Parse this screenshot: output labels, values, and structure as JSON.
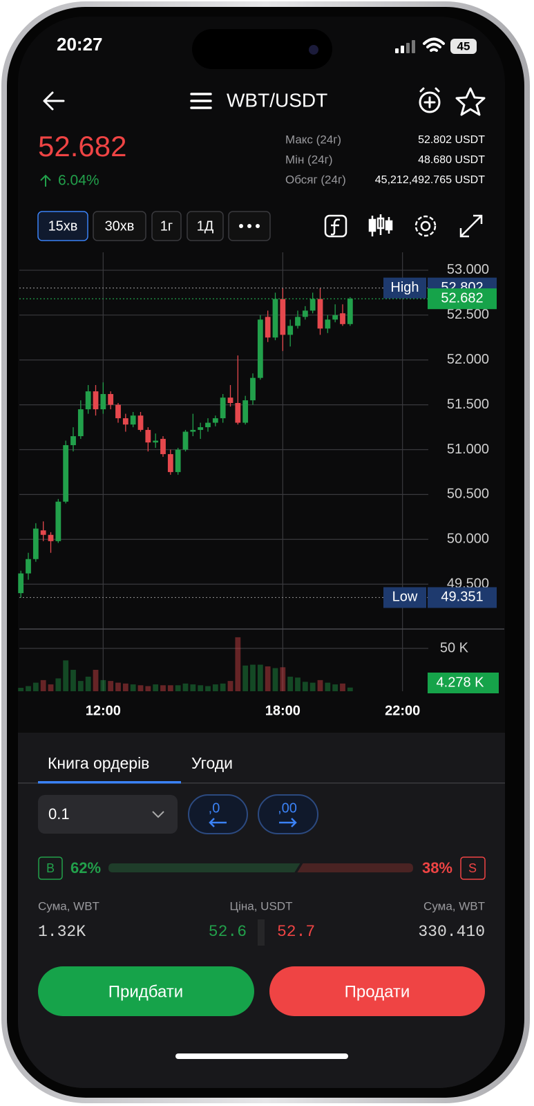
{
  "status": {
    "time": "20:27",
    "battery": "45"
  },
  "header": {
    "pair": "WBT/USDT"
  },
  "ticker": {
    "price": "52.682",
    "change": "6.04%",
    "stats": [
      {
        "label": "Макс (24г)",
        "value": "52.802 USDT"
      },
      {
        "label": "Мін (24г)",
        "value": "48.680 USDT"
      },
      {
        "label": "Обсяг (24г)",
        "value": "45,212,492.765 USDT"
      }
    ]
  },
  "intervals": [
    "15хв",
    "30хв",
    "1г",
    "1Д"
  ],
  "chart_data": {
    "type": "candlestick",
    "x": [
      9.25,
      9.5,
      9.75,
      10,
      10.25,
      10.5,
      10.75,
      11,
      11.25,
      11.5,
      11.75,
      12,
      12.25,
      12.5,
      12.75,
      13,
      13.25,
      13.5,
      13.75,
      14,
      14.25,
      14.5,
      14.75,
      15,
      15.25,
      15.5,
      15.75,
      16,
      16.25,
      16.5,
      16.75,
      17,
      17.25,
      17.5,
      17.75,
      18,
      18.25,
      18.5,
      18.75,
      19,
      19.25,
      19.5,
      19.75,
      20,
      20.25
    ],
    "open": [
      49.4,
      49.62,
      49.78,
      50.1,
      50.05,
      49.98,
      50.42,
      51.05,
      51.15,
      51.45,
      51.65,
      51.45,
      51.62,
      51.5,
      51.35,
      51.28,
      51.38,
      51.22,
      51.08,
      51.12,
      50.95,
      50.75,
      51.0,
      51.2,
      51.22,
      51.25,
      51.3,
      51.35,
      51.58,
      51.52,
      51.3,
      51.55,
      51.8,
      52.48,
      52.25,
      52.68,
      52.28,
      52.38,
      52.48,
      52.55,
      52.68,
      52.35,
      52.45,
      52.52,
      52.4
    ],
    "high": [
      49.65,
      49.85,
      50.18,
      50.2,
      50.08,
      50.45,
      51.1,
      51.25,
      51.55,
      51.72,
      51.72,
      51.75,
      51.65,
      51.52,
      51.4,
      51.42,
      51.42,
      51.25,
      51.18,
      51.15,
      51.0,
      51.02,
      51.22,
      51.4,
      51.3,
      51.35,
      51.38,
      51.62,
      51.72,
      52.05,
      51.6,
      51.85,
      52.5,
      52.55,
      52.75,
      52.8,
      52.45,
      52.55,
      52.6,
      52.75,
      52.8,
      52.5,
      52.62,
      52.62,
      52.7
    ],
    "low": [
      49.35,
      49.55,
      49.75,
      49.98,
      49.85,
      49.96,
      50.4,
      50.98,
      51.12,
      51.4,
      51.38,
      51.4,
      51.45,
      51.3,
      51.2,
      51.25,
      51.2,
      50.98,
      51.02,
      50.92,
      50.72,
      50.72,
      50.98,
      51.15,
      51.12,
      51.2,
      51.26,
      51.3,
      51.48,
      51.28,
      51.28,
      51.5,
      51.78,
      52.2,
      52.22,
      52.1,
      52.15,
      52.35,
      52.45,
      52.52,
      52.28,
      52.3,
      52.42,
      52.38,
      52.38
    ],
    "close": [
      49.62,
      49.78,
      50.12,
      50.05,
      49.98,
      50.42,
      51.05,
      51.15,
      51.45,
      51.65,
      51.45,
      51.62,
      51.5,
      51.35,
      51.28,
      51.38,
      51.22,
      51.08,
      51.1,
      50.95,
      50.75,
      51.0,
      51.2,
      51.22,
      51.25,
      51.3,
      51.35,
      51.58,
      51.52,
      51.3,
      51.55,
      51.8,
      52.45,
      52.25,
      52.68,
      52.28,
      52.38,
      52.48,
      52.55,
      52.68,
      52.35,
      52.45,
      52.5,
      52.4,
      52.682
    ],
    "volume": [
      4,
      6,
      10,
      13,
      8,
      15,
      36,
      25,
      12,
      17,
      25,
      13,
      12,
      10,
      9,
      8,
      7,
      6,
      8,
      7,
      7,
      7,
      9,
      8,
      7,
      6,
      8,
      9,
      12,
      63,
      30,
      31,
      31,
      29,
      27,
      28,
      17,
      16,
      11,
      10,
      13,
      10,
      8,
      9,
      4.278
    ],
    "up_color": "#22a04b",
    "down_color": "#e5484d",
    "xlim": [
      9.2,
      25.4
    ],
    "xticks": [
      {
        "value": 12,
        "label": "12:00"
      },
      {
        "value": 18,
        "label": "18:00"
      },
      {
        "value": 22,
        "label": "22:00"
      }
    ],
    "ylim": [
      49.0,
      53.2
    ],
    "yticks": [
      {
        "value": 49.5,
        "label": "49.500"
      },
      {
        "value": 50,
        "label": "50.000"
      },
      {
        "value": 50.5,
        "label": "50.500"
      },
      {
        "value": 51,
        "label": "51.000"
      },
      {
        "value": 51.5,
        "label": "51.500"
      },
      {
        "value": 52,
        "label": "52.000"
      },
      {
        "value": 52.5,
        "label": "52.500"
      },
      {
        "value": 53,
        "label": "53.000"
      }
    ],
    "volume_lim": [
      0,
      72.6
    ],
    "volume_ticks": [
      {
        "value": 50,
        "label": "50 K"
      }
    ],
    "grid": true,
    "markers": [
      {
        "name": "High",
        "value": 52.802
      },
      {
        "value": 52.682
      },
      {
        "name": "Low",
        "value": 49.351
      }
    ],
    "volume_marker": {
      "value": 4.278,
      "label": "4.278 K"
    }
  },
  "orderbook": {
    "tabs": [
      "Книга ордерів",
      "Угоди"
    ],
    "precision": "0.1",
    "precision_buttons": [
      ",0",
      ",00"
    ],
    "buy_tag": "B",
    "sell_tag": "S",
    "ratio": {
      "values": [
        62,
        38
      ],
      "value_labels": [
        "62%",
        "38%"
      ]
    },
    "columns": [
      "Сума, WBT",
      "Ціна, USDT",
      "Сума, WBT"
    ],
    "row": {
      "buy_amount": "1.32K",
      "bid": "52.6",
      "ask": "52.7",
      "sell_amount": "330.410"
    }
  },
  "actions": {
    "buy": "Придбати",
    "sell": "Продати"
  }
}
